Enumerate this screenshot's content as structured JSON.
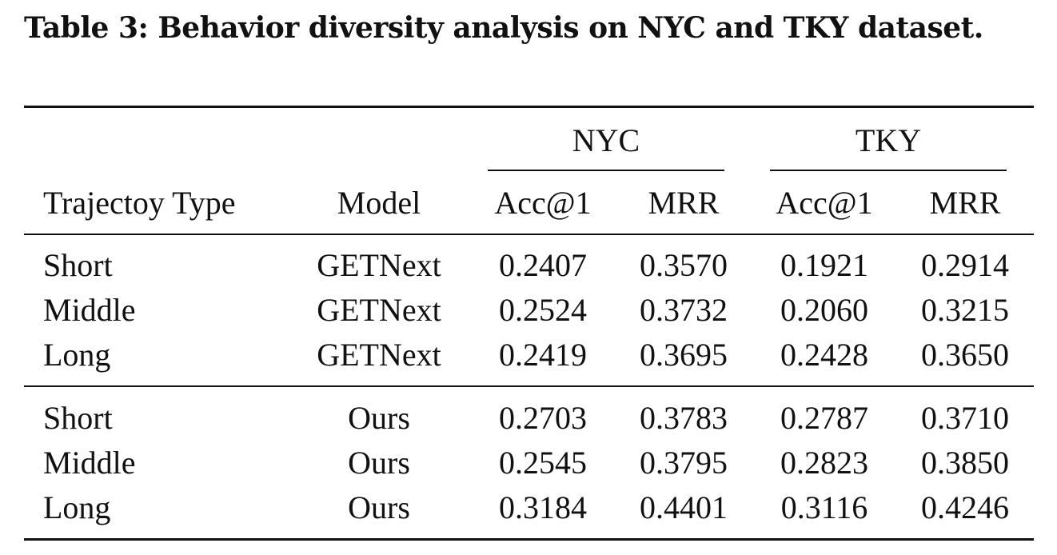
{
  "caption": "Table 3: Behavior diversity analysis on NYC and TKY dataset.",
  "table": {
    "group_headers": [
      "NYC",
      "TKY"
    ],
    "columns": [
      "Trajectoy Type",
      "Model",
      "Acc@1",
      "MRR",
      "Acc@1",
      "MRR"
    ],
    "blocks": [
      [
        [
          "Short",
          "GETNext",
          "0.2407",
          "0.3570",
          "0.1921",
          "0.2914"
        ],
        [
          "Middle",
          "GETNext",
          "0.2524",
          "0.3732",
          "0.2060",
          "0.3215"
        ],
        [
          "Long",
          "GETNext",
          "0.2419",
          "0.3695",
          "0.2428",
          "0.3650"
        ]
      ],
      [
        [
          "Short",
          "Ours",
          "0.2703",
          "0.3783",
          "0.2787",
          "0.3710"
        ],
        [
          "Middle",
          "Ours",
          "0.2545",
          "0.3795",
          "0.2823",
          "0.3850"
        ],
        [
          "Long",
          "Ours",
          "0.3184",
          "0.4401",
          "0.3116",
          "0.4246"
        ]
      ]
    ]
  }
}
